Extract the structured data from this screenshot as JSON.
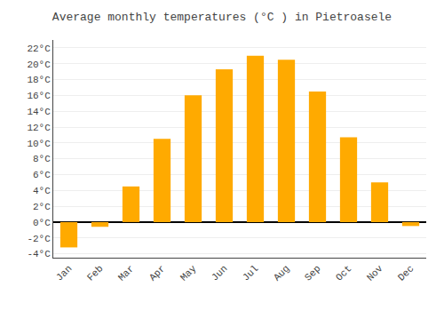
{
  "chart_data": {
    "type": "bar",
    "title": "Average monthly temperatures (°C ) in Pietroasele",
    "categories": [
      "Jan",
      "Feb",
      "Mar",
      "Apr",
      "May",
      "Jun",
      "Jul",
      "Aug",
      "Sep",
      "Oct",
      "Nov",
      "Dec"
    ],
    "values": [
      -3.2,
      -0.6,
      4.5,
      10.5,
      16.0,
      19.3,
      21.0,
      20.5,
      16.5,
      10.7,
      5.0,
      -0.5
    ],
    "color": "#FFAA00",
    "ylim": [
      -4.5,
      23
    ],
    "yticks": [
      {
        "value": -4,
        "label": "-4°C"
      },
      {
        "value": -2,
        "label": "-2°C"
      },
      {
        "value": 0,
        "label": "0°C"
      },
      {
        "value": 2,
        "label": "2°C"
      },
      {
        "value": 4,
        "label": "4°C"
      },
      {
        "value": 6,
        "label": "6°C"
      },
      {
        "value": 8,
        "label": "8°C"
      },
      {
        "value": 10,
        "label": "10°C"
      },
      {
        "value": 12,
        "label": "12°C"
      },
      {
        "value": 14,
        "label": "14°C"
      },
      {
        "value": 16,
        "label": "16°C"
      },
      {
        "value": 18,
        "label": "18°C"
      },
      {
        "value": 20,
        "label": "20°C"
      },
      {
        "value": 22,
        "label": "22°C"
      }
    ],
    "grid": true
  }
}
